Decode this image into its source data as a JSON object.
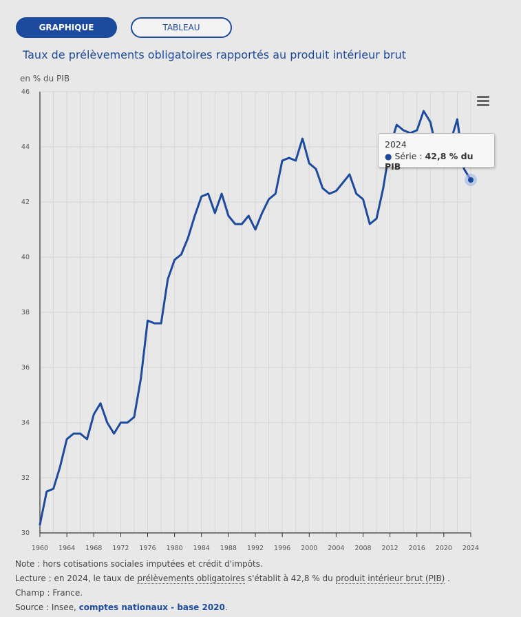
{
  "tabs": {
    "chart_label": "GRAPHIQUE",
    "table_label": "TABLEAU"
  },
  "chart_data": {
    "type": "line",
    "title": "Taux de prélèvements obligatoires rapportés au produit intérieur brut",
    "ylabel": "en % du PIB",
    "xlabel": "",
    "ylim": [
      30,
      46
    ],
    "yticks": [
      30,
      32,
      34,
      36,
      38,
      40,
      42,
      44,
      46
    ],
    "xlim": [
      1960,
      2024
    ],
    "xticks": [
      1960,
      1964,
      1968,
      1972,
      1976,
      1980,
      1984,
      1988,
      1992,
      1996,
      2000,
      2004,
      2008,
      2012,
      2016,
      2020,
      2024
    ],
    "grid": true,
    "color": "#1d4a9c",
    "series": [
      {
        "name": "Série",
        "x": [
          1960,
          1961,
          1962,
          1963,
          1964,
          1965,
          1966,
          1967,
          1968,
          1969,
          1970,
          1971,
          1972,
          1973,
          1974,
          1975,
          1976,
          1977,
          1978,
          1979,
          1980,
          1981,
          1982,
          1983,
          1984,
          1985,
          1986,
          1987,
          1988,
          1989,
          1990,
          1991,
          1992,
          1993,
          1994,
          1995,
          1996,
          1997,
          1998,
          1999,
          2000,
          2001,
          2002,
          2003,
          2004,
          2005,
          2006,
          2007,
          2008,
          2009,
          2010,
          2011,
          2012,
          2013,
          2014,
          2015,
          2016,
          2017,
          2018,
          2019,
          2020,
          2021,
          2022,
          2023,
          2024
        ],
        "values": [
          30.3,
          31.5,
          31.6,
          32.4,
          33.4,
          33.6,
          33.6,
          33.4,
          34.3,
          34.7,
          34.0,
          33.6,
          34.0,
          34.0,
          34.2,
          35.6,
          37.7,
          37.6,
          37.6,
          39.2,
          39.9,
          40.1,
          40.7,
          41.5,
          42.2,
          42.3,
          41.6,
          42.3,
          41.5,
          41.2,
          41.2,
          41.5,
          41.0,
          41.6,
          42.1,
          42.3,
          43.5,
          43.6,
          43.5,
          44.3,
          43.4,
          43.2,
          42.5,
          42.3,
          42.4,
          42.7,
          43.0,
          42.3,
          42.1,
          41.2,
          41.4,
          42.5,
          44.0,
          44.8,
          44.6,
          44.5,
          44.6,
          45.3,
          44.9,
          43.8,
          44.3,
          44.2,
          45.0,
          43.2,
          42.8
        ]
      }
    ]
  },
  "tooltip": {
    "year": "2024",
    "series_label": "Série :",
    "value": "42,8 % du PIB"
  },
  "notes": {
    "note": "Note : hors cotisations sociales imputées et crédit d'impôts.",
    "lecture_prefix": "Lecture : en 2024, le taux de ",
    "lecture_term1": "prélèvements obligatoires",
    "lecture_mid": " s'établit à 42,8 % du ",
    "lecture_term2": "produit intérieur brut (PIB)",
    "lecture_suffix": " .",
    "champ": "Champ : France.",
    "source_prefix": "Source : Insee, ",
    "source_link": "comptes nationaux - base 2020",
    "source_suffix": "."
  }
}
